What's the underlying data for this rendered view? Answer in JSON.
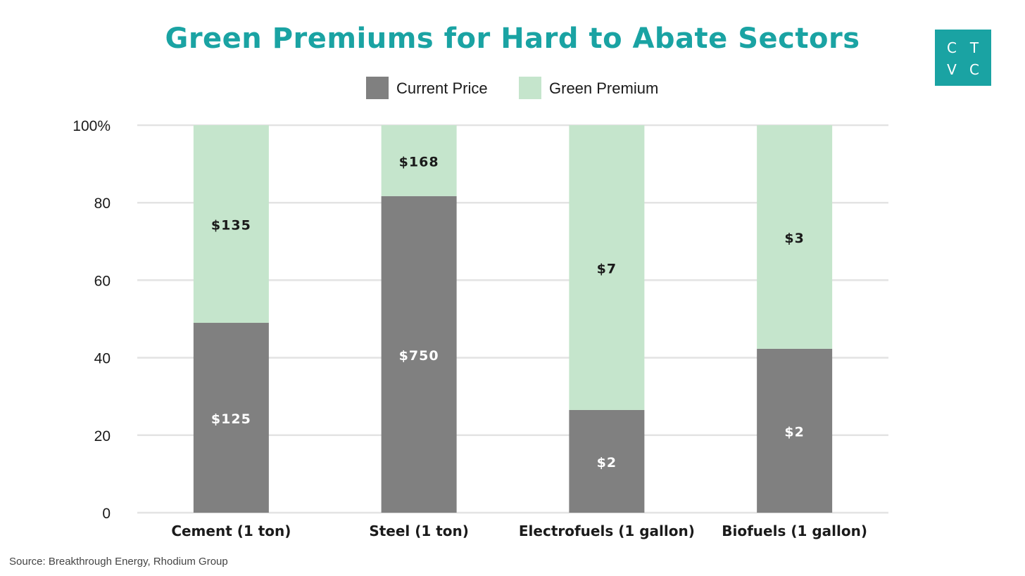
{
  "logo": {
    "letters": [
      "C",
      "T",
      "V",
      "C"
    ]
  },
  "source": "Source: Breakthrough Energy, Rhodium Group",
  "colors": {
    "title": "#1aa3a3",
    "current": "#808080",
    "green": "#c5e5cc",
    "grid": "#e3e3e3",
    "label_dark": "#1a1a1a",
    "label_light": "#ffffff"
  },
  "chart_data": {
    "type": "bar",
    "stacked": true,
    "title": "Green Premiums for Hard to Abate Sectors",
    "categories": [
      "Cement (1 ton)",
      "Steel (1 ton)",
      "Electrofuels (1 gallon)",
      "Biofuels (1 gallon)"
    ],
    "series": [
      {
        "name": "Current Price",
        "values": [
          49,
          81.7,
          26.5,
          42.3
        ],
        "labels": [
          "$125",
          "$750",
          "$2",
          "$2"
        ]
      },
      {
        "name": "Green Premium",
        "values": [
          51,
          18.3,
          73.5,
          57.7
        ],
        "labels": [
          "$135",
          "$168",
          "$7",
          "$3"
        ]
      }
    ],
    "ylim": [
      0,
      100
    ],
    "yticks": [
      0,
      20,
      40,
      60,
      80,
      100
    ],
    "ytick_labels": [
      "0",
      "20",
      "40",
      "60",
      "80",
      "100%"
    ],
    "xlabel": "",
    "ylabel": "",
    "grid": true,
    "legend": "top-center"
  }
}
